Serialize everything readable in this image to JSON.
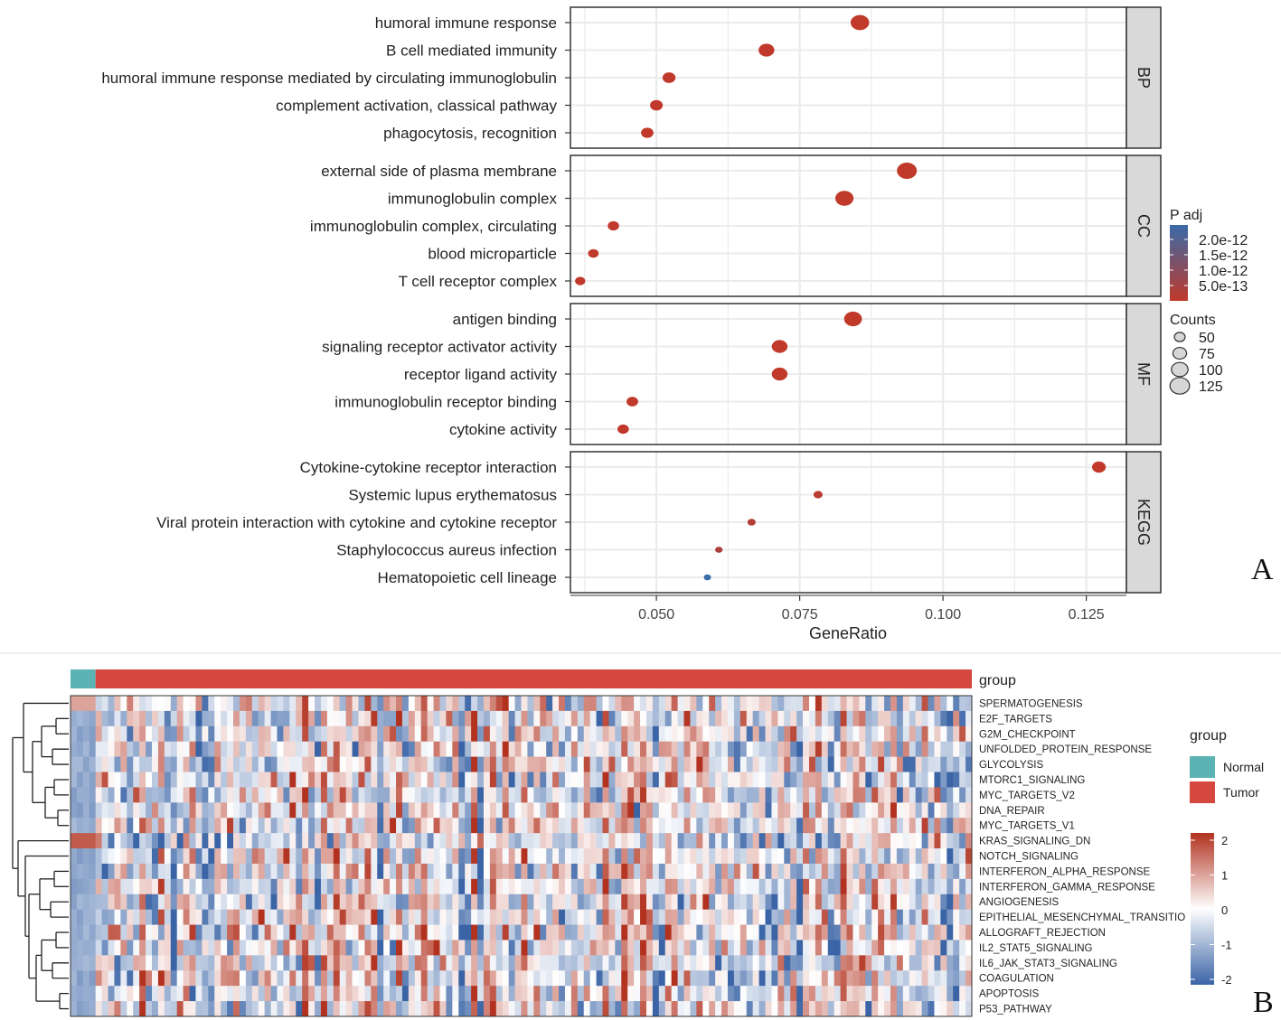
{
  "panel_labels": {
    "a": "A",
    "b": "B"
  },
  "chart_data": [
    {
      "type": "scatter",
      "xlabel": "GeneRatio",
      "xlim": [
        0.035,
        0.132
      ],
      "xticks": [
        0.05,
        0.075,
        0.1,
        0.125
      ],
      "xtick_labels": [
        "0.050",
        "0.075",
        "0.100",
        "0.125"
      ],
      "grid": true,
      "color_legend": {
        "title": "P adj",
        "labels": [
          "2.0e-12",
          "1.5e-12",
          "1.0e-12",
          "5.0e-13"
        ],
        "low_color": "#c0392b",
        "high_color": "#3a6aa8"
      },
      "size_legend": {
        "title": "Counts",
        "labels": [
          "50",
          "75",
          "100",
          "125"
        ],
        "values": [
          50,
          75,
          100,
          125
        ]
      },
      "facets": [
        {
          "name": "BP",
          "terms": [
            {
              "term": "humoral immune response",
              "x": 0.0855,
              "counts": 120,
              "padj": 1e-13
            },
            {
              "term": "B cell mediated immunity",
              "x": 0.0692,
              "counts": 100,
              "padj": 1e-13
            },
            {
              "term": "humoral immune response mediated by circulating immunoglobulin",
              "x": 0.0522,
              "counts": 80,
              "padj": 1e-13
            },
            {
              "term": "complement activation, classical pathway",
              "x": 0.05,
              "counts": 78,
              "padj": 1e-13
            },
            {
              "term": "phagocytosis, recognition",
              "x": 0.0484,
              "counts": 76,
              "padj": 1e-13
            }
          ]
        },
        {
          "name": "CC",
          "terms": [
            {
              "term": "external side of plasma membrane",
              "x": 0.0937,
              "counts": 130,
              "padj": 1e-13
            },
            {
              "term": "immunoglobulin complex",
              "x": 0.0828,
              "counts": 118,
              "padj": 1e-13
            },
            {
              "term": "immunoglobulin complex, circulating",
              "x": 0.0425,
              "counts": 68,
              "padj": 1e-13
            },
            {
              "term": "blood microparticle",
              "x": 0.039,
              "counts": 62,
              "padj": 1e-13
            },
            {
              "term": "T cell receptor complex",
              "x": 0.0367,
              "counts": 60,
              "padj": 1e-13
            }
          ]
        },
        {
          "name": "MF",
          "terms": [
            {
              "term": "antigen binding",
              "x": 0.0843,
              "counts": 115,
              "padj": 1e-13
            },
            {
              "term": "signaling receptor activator activity",
              "x": 0.0715,
              "counts": 100,
              "padj": 1e-13
            },
            {
              "term": "receptor ligand activity",
              "x": 0.0715,
              "counts": 100,
              "padj": 1e-13
            },
            {
              "term": "immunoglobulin receptor binding",
              "x": 0.0458,
              "counts": 70,
              "padj": 1e-13
            },
            {
              "term": "cytokine activity",
              "x": 0.0442,
              "counts": 68,
              "padj": 1e-13
            }
          ]
        },
        {
          "name": "KEGG",
          "terms": [
            {
              "term": "Cytokine-cytokine receptor interaction",
              "x": 0.1272,
              "counts": 85,
              "padj": 1e-13
            },
            {
              "term": "Systemic lupus erythematosus",
              "x": 0.0782,
              "counts": 52,
              "padj": 2e-13
            },
            {
              "term": "Viral protein interaction with cytokine and cytokine receptor",
              "x": 0.0666,
              "counts": 45,
              "padj": 3e-13
            },
            {
              "term": "Staphylococcus aureus infection",
              "x": 0.0609,
              "counts": 40,
              "padj": 4e-13
            },
            {
              "term": "Hematopoietic cell lineage",
              "x": 0.0589,
              "counts": 38,
              "padj": 2.2e-12
            }
          ]
        }
      ]
    },
    {
      "type": "heatmap",
      "rows": [
        "SPERMATOGENESIS",
        "E2F_TARGETS",
        "G2M_CHECKPOINT",
        "UNFOLDED_PROTEIN_RESPONSE",
        "GLYCOLYSIS",
        "MTORC1_SIGNALING",
        "MYC_TARGETS_V2",
        "DNA_REPAIR",
        "MYC_TARGETS_V1",
        "KRAS_SIGNALING_DN",
        "NOTCH_SIGNALING",
        "INTERFERON_ALPHA_RESPONSE",
        "INTERFERON_GAMMA_RESPONSE",
        "ANGIOGENESIS",
        "EPITHELIAL_MESENCHYMAL_TRANSITIO",
        "ALLOGRAFT_REJECTION",
        "IL2_STAT5_SIGNALING",
        "IL6_JAK_STAT3_SIGNALING",
        "COAGULATION",
        "APOPTOSIS",
        "P53_PATHWAY"
      ],
      "columns": {
        "normal_count": 4,
        "tumor_count": 140
      },
      "annotation": {
        "title": "group",
        "groups": [
          {
            "name": "Normal",
            "color": "#5bb3b3"
          },
          {
            "name": "Tumor",
            "color": "#d6473f"
          }
        ]
      },
      "color_scale": {
        "min": -2,
        "max": 2,
        "ticks": [
          "2",
          "1",
          "0",
          "-1",
          "-2"
        ],
        "low_color": "#3a64a6",
        "mid_color": "#ffffff",
        "high_color": "#b2321f"
      },
      "legend_title": "group"
    }
  ]
}
